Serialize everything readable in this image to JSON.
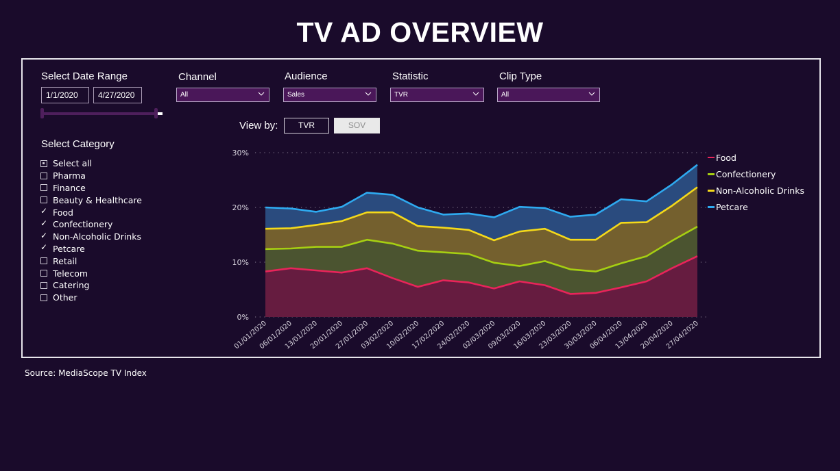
{
  "title": "TV AD OVERVIEW",
  "filters": {
    "date_range": {
      "label": "Select Date Range",
      "start": "1/1/2020",
      "end": "4/27/2020"
    },
    "channel": {
      "label": "Channel",
      "value": "All"
    },
    "audience": {
      "label": "Audience",
      "value": "Sales"
    },
    "statistic": {
      "label": "Statistic",
      "value": "TVR"
    },
    "clip_type": {
      "label": "Clip Type",
      "value": "All"
    }
  },
  "view_by": {
    "label": "View by:",
    "options": [
      "TVR",
      "SOV"
    ],
    "selected": "TVR"
  },
  "category": {
    "label": "Select Category",
    "items": [
      {
        "label": "Select all",
        "state": "partial"
      },
      {
        "label": "Pharma",
        "state": "unchecked"
      },
      {
        "label": "Finance",
        "state": "unchecked"
      },
      {
        "label": "Beauty & Healthcare",
        "state": "unchecked"
      },
      {
        "label": "Food",
        "state": "checked"
      },
      {
        "label": "Confectionery",
        "state": "checked"
      },
      {
        "label": "Non-Alcoholic Drinks",
        "state": "checked"
      },
      {
        "label": "Petcare",
        "state": "checked"
      },
      {
        "label": "Retail",
        "state": "unchecked"
      },
      {
        "label": "Telecom",
        "state": "unchecked"
      },
      {
        "label": "Catering",
        "state": "unchecked"
      },
      {
        "label": "Other",
        "state": "unchecked"
      }
    ]
  },
  "source": "Source: MediaScope TV Index",
  "chart_data": {
    "type": "area",
    "stacked": true,
    "title": "",
    "xlabel": "",
    "ylabel": "",
    "ylim": [
      0,
      30
    ],
    "yticks": [
      0,
      10,
      20,
      30
    ],
    "ytick_labels": [
      "0%",
      "10%",
      "20%",
      "30%"
    ],
    "grid": "horizontal-dotted",
    "legend_position": "right",
    "x": [
      "01/01/2020",
      "06/01/2020",
      "13/01/2020",
      "20/01/2020",
      "27/01/2020",
      "03/02/2020",
      "10/02/2020",
      "17/02/2020",
      "24/02/2020",
      "02/03/2020",
      "09/03/2020",
      "16/03/2020",
      "23/03/2020",
      "30/03/2020",
      "06/04/2020",
      "13/04/2020",
      "20/04/2020",
      "27/04/2020"
    ],
    "series": [
      {
        "name": "Food",
        "color": "#e8245a",
        "fill": "#661c40",
        "values": [
          8.3,
          8.9,
          8.5,
          8.1,
          8.9,
          7.1,
          5.5,
          6.7,
          6.3,
          5.2,
          6.5,
          5.8,
          4.2,
          4.4,
          5.4,
          6.5,
          8.9,
          11.1
        ]
      },
      {
        "name": "Confectionery",
        "color": "#a6cf12",
        "fill": "#4b5430",
        "values": [
          4.1,
          3.6,
          4.3,
          4.7,
          5.2,
          6.3,
          6.6,
          5.1,
          5.2,
          4.7,
          2.8,
          4.4,
          4.5,
          3.9,
          4.4,
          4.6,
          5.0,
          5.4
        ]
      },
      {
        "name": "Non-Alcoholic Drinks",
        "color": "#f4d91a",
        "fill": "#74602e",
        "values": [
          3.7,
          3.7,
          4.0,
          4.7,
          5.0,
          5.7,
          4.5,
          4.5,
          4.4,
          4.1,
          6.3,
          5.9,
          5.4,
          5.8,
          7.4,
          6.2,
          6.4,
          7.2
        ]
      },
      {
        "name": "Petcare",
        "color": "#2eaaf0",
        "fill": "#2a4b7e",
        "values": [
          3.9,
          3.6,
          2.4,
          2.6,
          3.6,
          3.2,
          3.4,
          2.4,
          3.0,
          4.2,
          4.5,
          3.8,
          4.2,
          4.6,
          4.3,
          3.8,
          3.9,
          4.1
        ]
      }
    ]
  }
}
